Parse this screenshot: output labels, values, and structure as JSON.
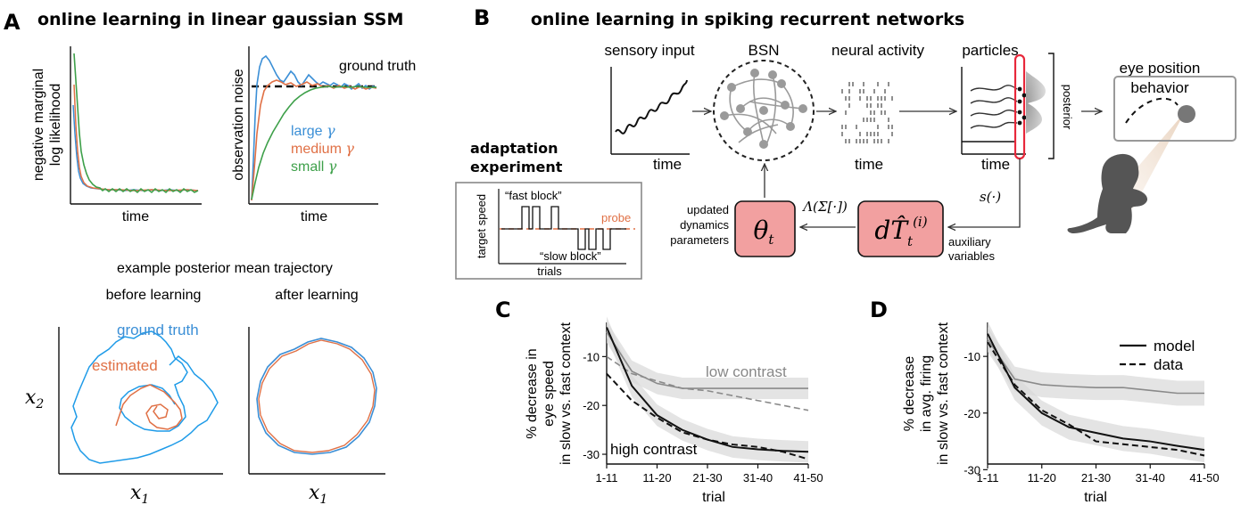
{
  "colors": {
    "blue": "#3b8fd6",
    "orange": "#e07045",
    "green": "#3ea04a",
    "pink": "#f2a0a0",
    "gray": "#8a8a8a",
    "black": "#111111"
  },
  "panelA": {
    "letter": "A",
    "title": "online learning in linear gaussian SSM",
    "left_plot": {
      "ylabel_1": "negative marginal",
      "ylabel_2": "log likelihood",
      "xlabel": "time"
    },
    "right_plot": {
      "ylabel": "observation noise",
      "xlabel": "time",
      "ground_truth": "ground truth"
    },
    "legend": {
      "large": "large",
      "medium": "medium",
      "small": "small",
      "gamma": "γ"
    },
    "posterior_title": "example posterior mean trajectory",
    "before": "before learning",
    "after": "after learning",
    "ground_truth": "ground truth",
    "estimated": "estimated",
    "x_label": "x",
    "x_sub": "1",
    "y_label": "x",
    "y_sub": "2"
  },
  "panelB": {
    "letter": "B",
    "title": "online learning in spiking recurrent networks",
    "sensory": "sensory input",
    "bsn": "BSN",
    "neural": "neural activity",
    "particles": "particles",
    "eye_1": "eye position",
    "eye_2": "behavior",
    "time": "time",
    "posterior": "posterior",
    "s_func": "s(·)",
    "lambda": "Λ(Σ[·])",
    "theta": "θ",
    "theta_sub": "t",
    "dT": "dT̂",
    "dT_sup": "(i)",
    "dT_sub": "t",
    "updated_1": "updated",
    "updated_2": "dynamics",
    "updated_3": "parameters",
    "aux_1": "auxiliary",
    "aux_2": "variables",
    "adapt_1": "adaptation",
    "adapt_2": "experiment",
    "target_speed": "target speed",
    "fast_block": "“fast block”",
    "slow_block": "“slow block”",
    "probe": "probe",
    "trials": "trials"
  },
  "panelC": {
    "letter": "C",
    "ylabel_1": "% decrease in",
    "ylabel_2": "eye speed",
    "ylabel_3": "in slow vs. fast context",
    "xlabel": "trial",
    "low": "low contrast",
    "high": "high contrast"
  },
  "panelD": {
    "letter": "D",
    "ylabel_1": "% decrease",
    "ylabel_2": "in avg. firing",
    "ylabel_3": "in slow vs. fast context",
    "xlabel": "trial",
    "legend_model": "model",
    "legend_data": "data"
  },
  "chart_data": [
    {
      "type": "line",
      "xlabel": "trial",
      "ylabel": "% decrease in eye speed in slow vs. fast context",
      "categories": [
        "1-11",
        "11-20",
        "21-30",
        "31-40",
        "41-50"
      ],
      "ylim": [
        -32,
        -3
      ],
      "yticks": [
        -10,
        -20,
        -30
      ],
      "series": [
        {
          "name": "low contrast",
          "style": "model",
          "x": [
            1,
            1.5,
            2,
            2.5,
            3,
            3.5,
            4,
            4.5,
            5
          ],
          "values": [
            -5,
            -13,
            -15.5,
            -16.5,
            -16.5,
            -16.5,
            -16.5,
            -16.5,
            -16.5
          ]
        },
        {
          "name": "low contrast",
          "style": "data",
          "x": [
            1,
            1.5,
            2,
            2.5,
            3,
            3.5,
            4,
            4.5,
            5
          ],
          "values": [
            -10,
            -13.5,
            -15,
            -16.5,
            -17,
            -18,
            -19,
            -20,
            -21
          ]
        },
        {
          "name": "high contrast",
          "style": "model",
          "x": [
            1,
            1.5,
            2,
            2.5,
            3,
            3.5,
            4,
            4.5,
            5
          ],
          "values": [
            -4,
            -16,
            -22,
            -25,
            -27,
            -28.5,
            -29,
            -29.3,
            -29.5
          ]
        },
        {
          "name": "high contrast",
          "style": "data",
          "x": [
            1,
            1.5,
            2,
            2.5,
            3,
            3.5,
            4,
            4.5,
            5
          ],
          "values": [
            -13.5,
            -19,
            -22.5,
            -25.5,
            -27,
            -28,
            -28.5,
            -29.5,
            -31
          ]
        }
      ]
    },
    {
      "type": "line",
      "xlabel": "trial",
      "ylabel": "% decrease in avg. firing in slow vs. fast context",
      "categories": [
        "1-11",
        "11-20",
        "21-30",
        "31-40",
        "41-50"
      ],
      "ylim": [
        -29,
        -4
      ],
      "yticks": [
        -10,
        -20,
        -30
      ],
      "series": [
        {
          "name": "model",
          "style": "model",
          "color": "gray",
          "x": [
            1,
            1.5,
            2,
            2.5,
            3,
            3.5,
            4,
            4.5,
            5
          ],
          "values": [
            -7,
            -14,
            -15,
            -15.3,
            -15.5,
            -15.5,
            -16,
            -16.5,
            -16.5
          ]
        },
        {
          "name": "model",
          "style": "model",
          "color": "black",
          "x": [
            1,
            1.5,
            2,
            2.5,
            3,
            3.5,
            4,
            4.5,
            5
          ],
          "values": [
            -6,
            -15.5,
            -20,
            -22.5,
            -23.5,
            -24.5,
            -25,
            -25.8,
            -26.5
          ]
        },
        {
          "name": "data",
          "style": "data",
          "color": "black",
          "x": [
            1,
            1.5,
            2,
            2.5,
            3,
            3.5,
            4,
            4.5,
            5
          ],
          "values": [
            -7.5,
            -15,
            -19.5,
            -22,
            -25,
            -25.5,
            -26,
            -26.5,
            -27.5
          ]
        }
      ]
    }
  ]
}
